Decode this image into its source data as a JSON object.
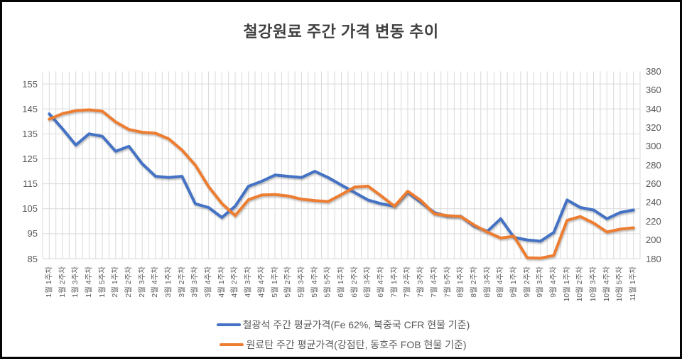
{
  "title": "철강원료 주간 가격 변동 추이",
  "chart_data": {
    "type": "line",
    "title": "철강원료 주간 가격 변동 추이",
    "categories": [
      "1월 1주차",
      "1월 2주차",
      "1월 3주차",
      "1월 4주차",
      "1월 5주차",
      "2월 1주차",
      "2월 2주차",
      "2월 3주차",
      "2월 4주차",
      "3월 1주차",
      "3월 2주차",
      "3월 3주차",
      "3월 4주차",
      "4월 1주차",
      "4월 2주차",
      "4월 3주차",
      "4월 4주차",
      "5월 1주차",
      "5월 2주차",
      "5월 3주차",
      "5월 4주차",
      "5월 5주차",
      "6월 1주차",
      "6월 2주차",
      "6월 3주차",
      "6월 4주차",
      "7월 1주차",
      "7월 2주차",
      "7월 3주차",
      "7월 4주차",
      "7월 5주차",
      "8월 1주차",
      "8월 2주차",
      "8월 3주차",
      "8월 4주차",
      "9월 1주차",
      "9월 2주차",
      "9월 3주차",
      "9월 4주차",
      "10월 1주차",
      "10월 2주차",
      "10월 3주차",
      "10월 4주차",
      "10월 5주차",
      "11월 1주차"
    ],
    "series": [
      {
        "name": "철광석 주간 평균가격(Fe 62%, 북중국 CFR 현물 기준)",
        "axis": "left",
        "color": "#4472C4",
        "values": [
          143,
          137,
          130.5,
          135,
          134,
          128,
          130,
          123,
          118,
          117.5,
          118,
          107,
          105.5,
          101.5,
          106,
          114,
          116,
          118.5,
          118,
          117.5,
          120,
          117.5,
          114.5,
          111.5,
          108.5,
          107,
          106,
          111.5,
          107.5,
          103.5,
          102,
          102,
          98,
          96,
          101,
          93.5,
          92.5,
          92,
          95.5,
          108.5,
          105.5,
          104.5,
          101,
          103.5,
          104.5
        ]
      },
      {
        "name": "원료탄 주간 평균가격(강점탄, 동호주 FOB 현물 기준)",
        "axis": "right",
        "color": "#ED7D31",
        "values": [
          329,
          335,
          338,
          339,
          337.5,
          326,
          318,
          315,
          314,
          308,
          296,
          280,
          257,
          239,
          226,
          243,
          248,
          248.5,
          247,
          243.5,
          242,
          241,
          248.5,
          256.5,
          257.5,
          247,
          236,
          252,
          242,
          228,
          226,
          225,
          216,
          208.5,
          202,
          204,
          181,
          180.5,
          183.5,
          221,
          225,
          218,
          208.5,
          211.5,
          213
        ]
      }
    ],
    "left_axis": {
      "min": 85,
      "max": 160,
      "ticks": [
        155,
        145,
        135,
        125,
        115,
        105,
        95,
        85
      ]
    },
    "right_axis": {
      "min": 180,
      "max": 380,
      "ticks": [
        380,
        360,
        340,
        320,
        300,
        280,
        260,
        240,
        220,
        200,
        180
      ]
    },
    "grid": true,
    "legend_position": "bottom"
  },
  "colors": {
    "grid": "#d9d9d9",
    "axis_text": "#595959",
    "title_text": "#404040"
  }
}
